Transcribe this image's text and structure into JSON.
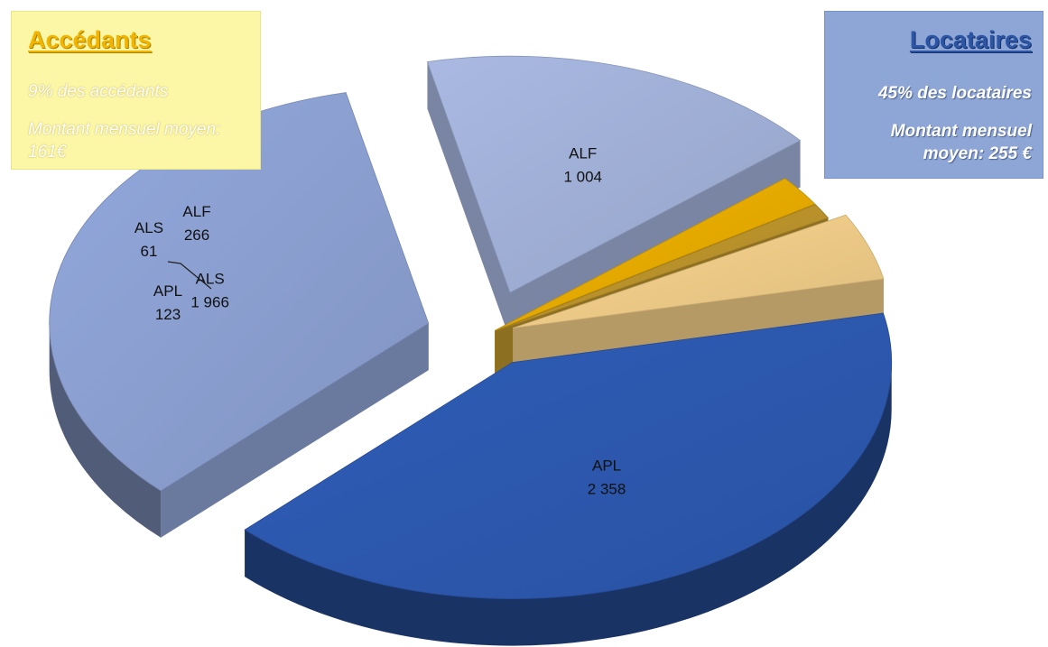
{
  "legend_boxes": {
    "accedants": {
      "title": "Accédants",
      "line1": "9% des accédants",
      "line2": "Montant mensuel moyen: 161€",
      "color": "#fbf7a6"
    },
    "locataires": {
      "title": "Locataires",
      "line1": "45% des locataires",
      "line2": "Montant mensuel moyen: 255 €",
      "color": "#8ea6d6"
    }
  },
  "chart_data": {
    "type": "pie",
    "three_d": true,
    "exploded": true,
    "title": "",
    "slices": [
      {
        "group": "Locataires",
        "label": "APL",
        "value": 2358,
        "display": "2 358",
        "color": "#2f5db8"
      },
      {
        "group": "Locataires",
        "label": "ALS",
        "value": 1966,
        "display": "1 966",
        "color": "#93a8dc"
      },
      {
        "group": "Locataires",
        "label": "ALF",
        "value": 1004,
        "display": "1 004",
        "color": "#a9b9e2"
      },
      {
        "group": "Accédants",
        "label": "APL",
        "value": 123,
        "display": "123",
        "color": "#f2b400"
      },
      {
        "group": "Accédants",
        "label": "ALS",
        "value": 61,
        "display": "61",
        "color": "#c49a2e"
      },
      {
        "group": "Accédants",
        "label": "ALF",
        "value": 266,
        "display": "266",
        "color": "#fbd68e"
      }
    ]
  }
}
